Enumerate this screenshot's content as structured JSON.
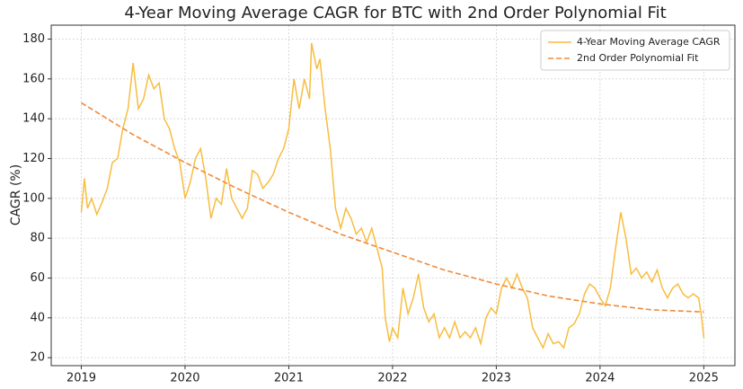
{
  "chart_data": {
    "type": "line",
    "title": "4-Year Moving Average CAGR for BTC with 2nd Order Polynomial Fit",
    "ylabel": "CAGR (%)",
    "xlim": [
      2018.71,
      2025.3
    ],
    "xticks": [
      2019,
      2020,
      2021,
      2022,
      2023,
      2024,
      2025
    ],
    "ylim": [
      16,
      187
    ],
    "yticks": [
      20,
      40,
      60,
      80,
      100,
      120,
      140,
      160,
      180
    ],
    "grid": true,
    "legend": "upper right",
    "series": [
      {
        "name": "4-Year Moving Average CAGR",
        "color": "#f7bd3f",
        "dash": false,
        "x": [
          2019.0,
          2019.03,
          2019.06,
          2019.1,
          2019.15,
          2019.2,
          2019.25,
          2019.3,
          2019.35,
          2019.4,
          2019.45,
          2019.5,
          2019.55,
          2019.6,
          2019.65,
          2019.7,
          2019.75,
          2019.8,
          2019.85,
          2019.9,
          2019.95,
          2020.0,
          2020.05,
          2020.1,
          2020.15,
          2020.2,
          2020.25,
          2020.3,
          2020.35,
          2020.4,
          2020.45,
          2020.5,
          2020.55,
          2020.6,
          2020.65,
          2020.7,
          2020.75,
          2020.8,
          2020.85,
          2020.9,
          2020.95,
          2021.0,
          2021.05,
          2021.1,
          2021.15,
          2021.2,
          2021.22,
          2021.27,
          2021.3,
          2021.35,
          2021.4,
          2021.45,
          2021.5,
          2021.55,
          2021.6,
          2021.65,
          2021.7,
          2021.75,
          2021.8,
          2021.85,
          2021.9,
          2021.93,
          2021.97,
          2022.0,
          2022.05,
          2022.1,
          2022.15,
          2022.2,
          2022.25,
          2022.3,
          2022.35,
          2022.4,
          2022.45,
          2022.5,
          2022.55,
          2022.6,
          2022.65,
          2022.7,
          2022.75,
          2022.8,
          2022.85,
          2022.9,
          2022.95,
          2023.0,
          2023.05,
          2023.1,
          2023.15,
          2023.2,
          2023.25,
          2023.3,
          2023.35,
          2023.4,
          2023.45,
          2023.5,
          2023.55,
          2023.6,
          2023.65,
          2023.7,
          2023.75,
          2023.8,
          2023.85,
          2023.9,
          2023.95,
          2024.0,
          2024.05,
          2024.1,
          2024.15,
          2024.2,
          2024.25,
          2024.3,
          2024.35,
          2024.4,
          2024.45,
          2024.5,
          2024.55,
          2024.6,
          2024.65,
          2024.7,
          2024.75,
          2024.8,
          2024.85,
          2024.9,
          2024.95,
          2024.98,
          2025.0
        ],
        "values": [
          93,
          110,
          95,
          100,
          92,
          98,
          105,
          118,
          120,
          135,
          145,
          168,
          145,
          150,
          162,
          155,
          158,
          140,
          135,
          125,
          118,
          100,
          108,
          120,
          125,
          110,
          90,
          100,
          97,
          115,
          100,
          95,
          90,
          95,
          114,
          112,
          105,
          108,
          112,
          120,
          125,
          135,
          160,
          145,
          160,
          150,
          178,
          165,
          170,
          145,
          125,
          95,
          85,
          95,
          90,
          82,
          85,
          78,
          85,
          75,
          65,
          40,
          28,
          35,
          30,
          55,
          42,
          50,
          62,
          45,
          38,
          42,
          30,
          35,
          30,
          38,
          30,
          33,
          30,
          35,
          27,
          40,
          45,
          42,
          55,
          60,
          55,
          62,
          55,
          50,
          35,
          30,
          25,
          32,
          27,
          28,
          25,
          35,
          37,
          42,
          52,
          57,
          55,
          50,
          46,
          55,
          75,
          93,
          80,
          62,
          65,
          60,
          63,
          58,
          64,
          55,
          50,
          55,
          57,
          52,
          50,
          52,
          50,
          40,
          30
        ]
      },
      {
        "name": "2nd Order Polynomial Fit",
        "color": "#f08a3c",
        "dash": true,
        "x": [
          2019.0,
          2019.5,
          2020.0,
          2020.5,
          2021.0,
          2021.5,
          2022.0,
          2022.5,
          2023.0,
          2023.5,
          2024.0,
          2024.5,
          2025.0
        ],
        "values": [
          148,
          132,
          118,
          105,
          93,
          82,
          73,
          64,
          57,
          51,
          47,
          44,
          43
        ]
      }
    ]
  }
}
